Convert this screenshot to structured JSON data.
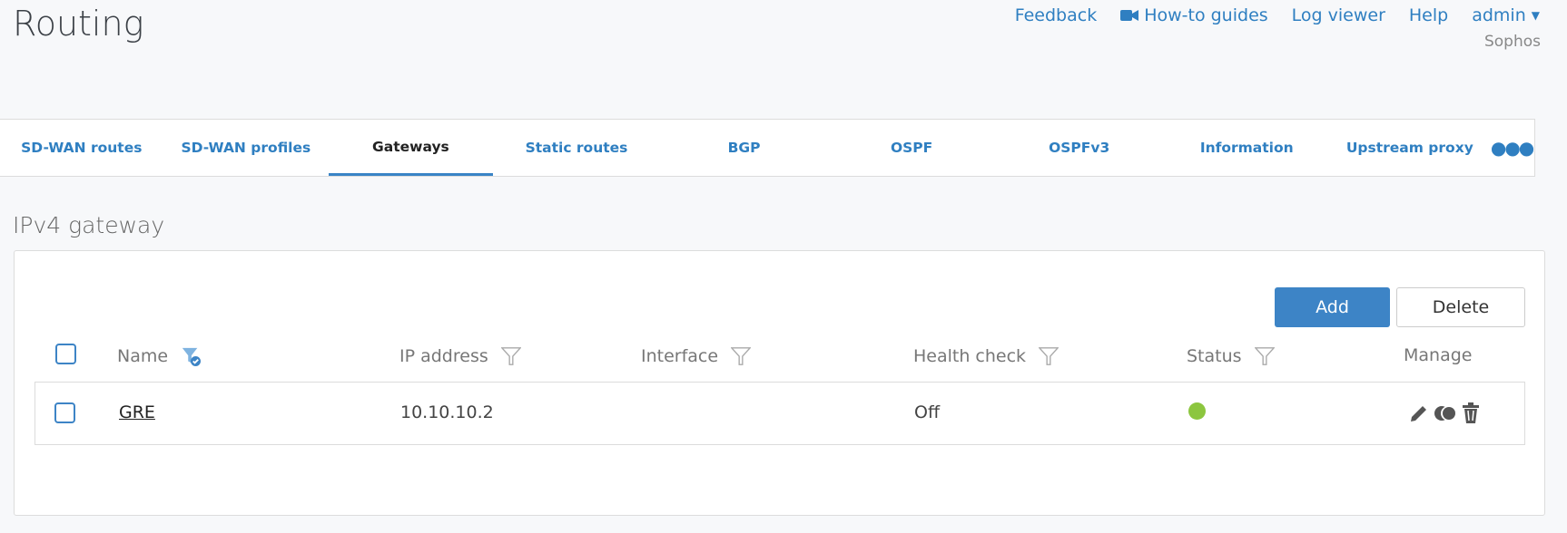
{
  "page": {
    "title": "Routing"
  },
  "toplinks": {
    "feedback": "Feedback",
    "howto": "How-to guides",
    "logviewer": "Log viewer",
    "help": "Help",
    "user": "admin",
    "org": "Sophos"
  },
  "tabs": [
    {
      "label": "SD-WAN routes"
    },
    {
      "label": "SD-WAN profiles"
    },
    {
      "label": "Gateways",
      "active": true
    },
    {
      "label": "Static routes"
    },
    {
      "label": "BGP"
    },
    {
      "label": "OSPF"
    },
    {
      "label": "OSPFv3"
    },
    {
      "label": "Information"
    },
    {
      "label": "Upstream proxy"
    }
  ],
  "section": {
    "title": "IPv4 gateway"
  },
  "toolbar": {
    "add": "Add",
    "delete": "Delete"
  },
  "table": {
    "headers": {
      "name": "Name",
      "ip": "IP address",
      "interface": "Interface",
      "health": "Health check",
      "status": "Status",
      "manage": "Manage"
    },
    "rows": [
      {
        "name": "GRE",
        "ip": "10.10.10.2",
        "interface": "",
        "health": "Off",
        "status": "active",
        "status_color": "#8cc63f"
      }
    ]
  },
  "colors": {
    "accent": "#3d84c6",
    "link": "#2f7fc1"
  }
}
